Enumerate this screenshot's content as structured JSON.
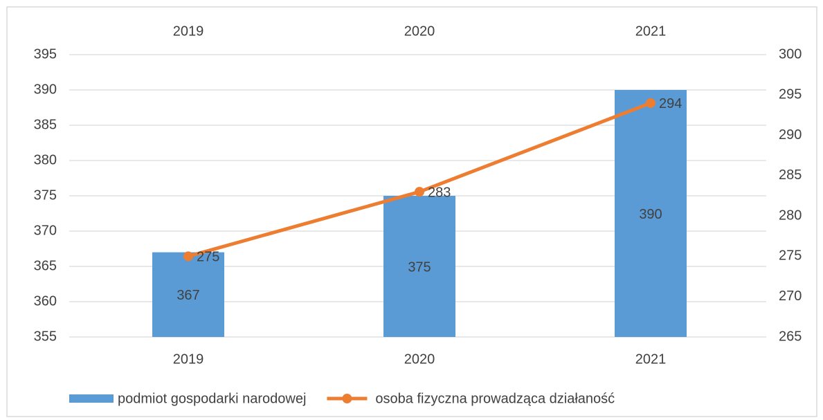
{
  "chart_data": {
    "type": "bar",
    "categories": [
      "2019",
      "2020",
      "2021"
    ],
    "series": [
      {
        "name": "podmiot gospodarki narodowej",
        "type": "bar",
        "color": "#5b9bd5",
        "values": [
          367,
          375,
          390
        ]
      },
      {
        "name": "osoba fizyczna prowadząca działaność",
        "type": "line",
        "axis": "y2",
        "color": "#ed7d31",
        "values": [
          275,
          283,
          294
        ]
      }
    ],
    "ylim": [
      355,
      395
    ],
    "yticks": [
      355,
      360,
      365,
      370,
      375,
      380,
      385,
      390,
      395
    ],
    "y2lim": [
      265,
      300
    ],
    "y2ticks": [
      265,
      270,
      275,
      280,
      285,
      290,
      295,
      300
    ],
    "grid": true,
    "legend": "bottom"
  }
}
